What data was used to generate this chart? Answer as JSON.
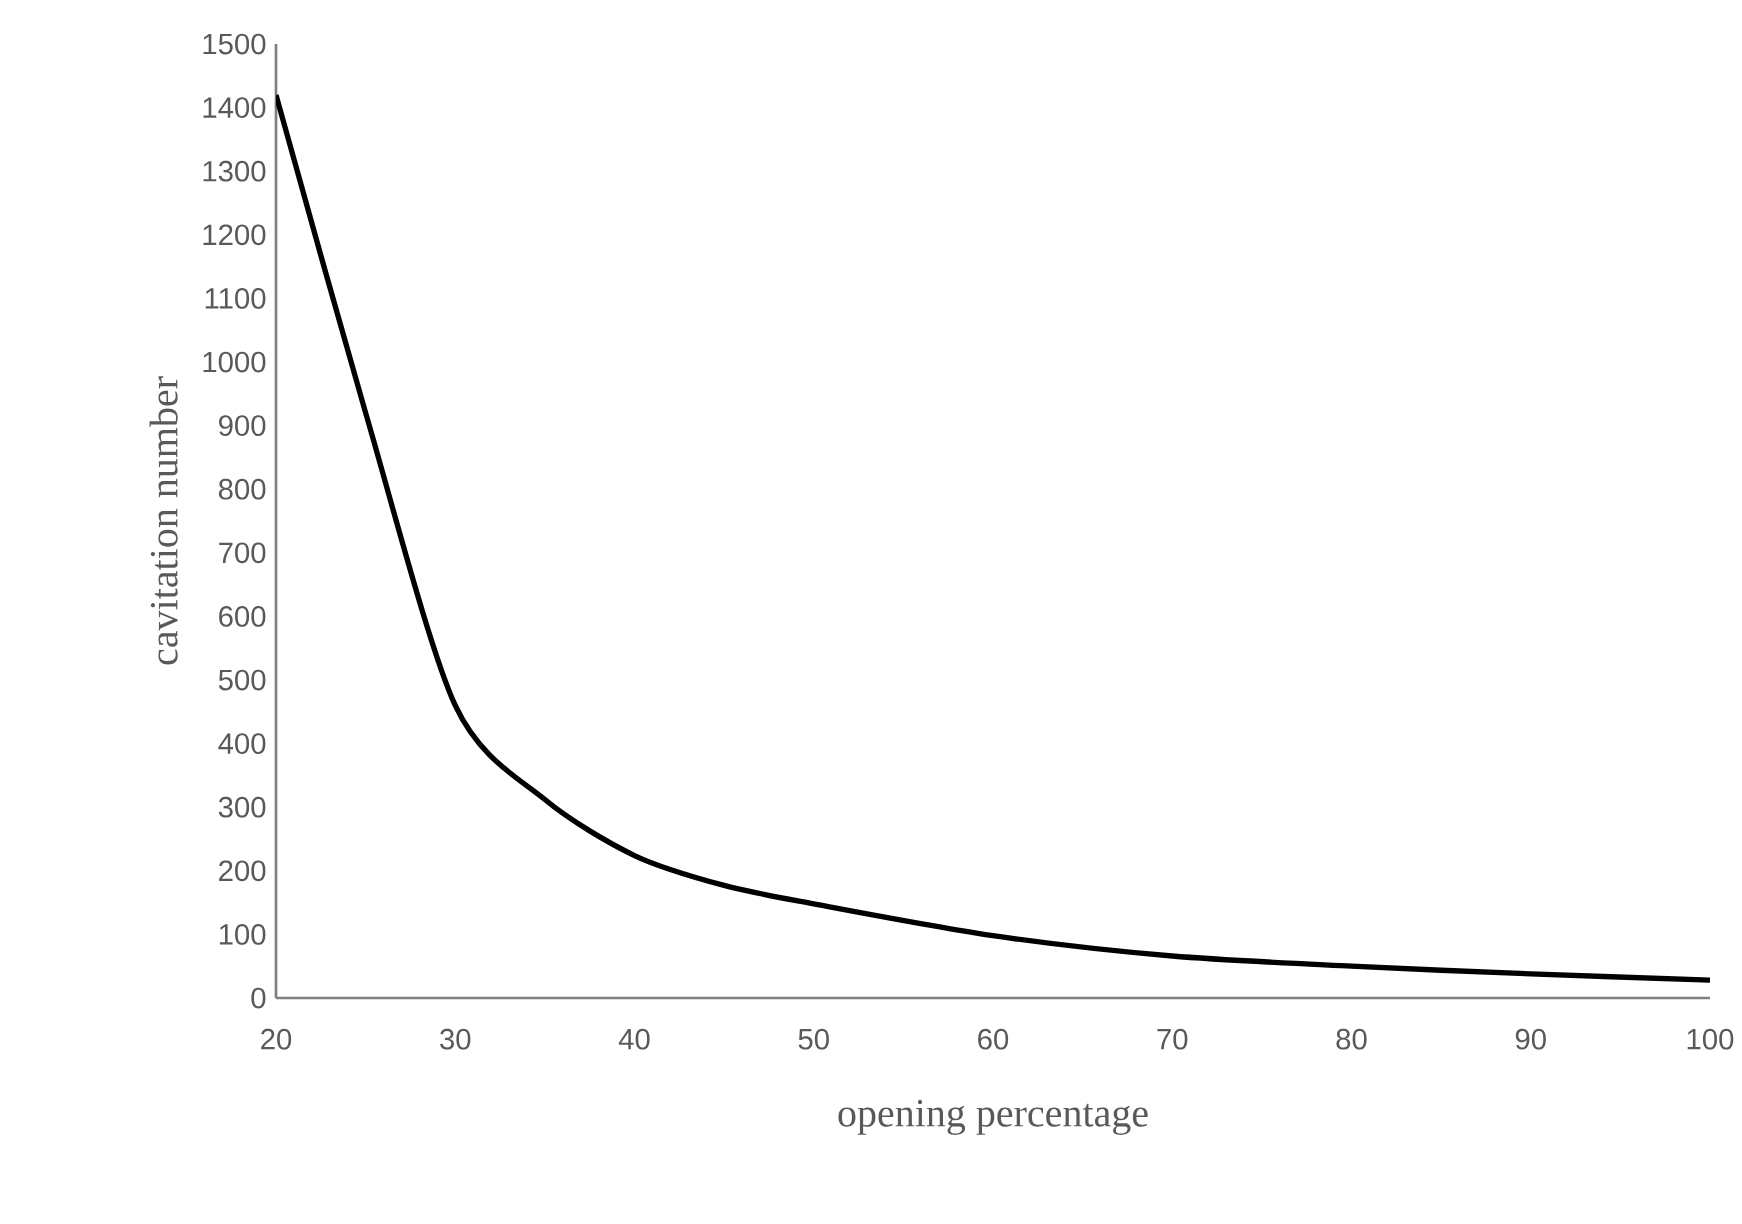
{
  "chart_data": {
    "type": "line",
    "xlabel": "opening percentage",
    "ylabel": "cavitation number",
    "x": [
      20,
      25,
      30,
      35,
      40,
      45,
      50,
      60,
      70,
      80,
      90,
      100
    ],
    "values": [
      1420,
      920,
      460,
      312,
      224,
      177,
      148,
      98,
      66,
      50,
      38,
      28
    ],
    "color": "#000000",
    "xlim": [
      20,
      100
    ],
    "ylim": [
      0,
      1500
    ],
    "xticks": [
      20,
      30,
      40,
      50,
      60,
      70,
      80,
      90,
      100
    ],
    "yticks": [
      0,
      100,
      200,
      300,
      400,
      500,
      600,
      700,
      800,
      900,
      1000,
      1100,
      1200,
      1300,
      1400,
      1500
    ]
  }
}
